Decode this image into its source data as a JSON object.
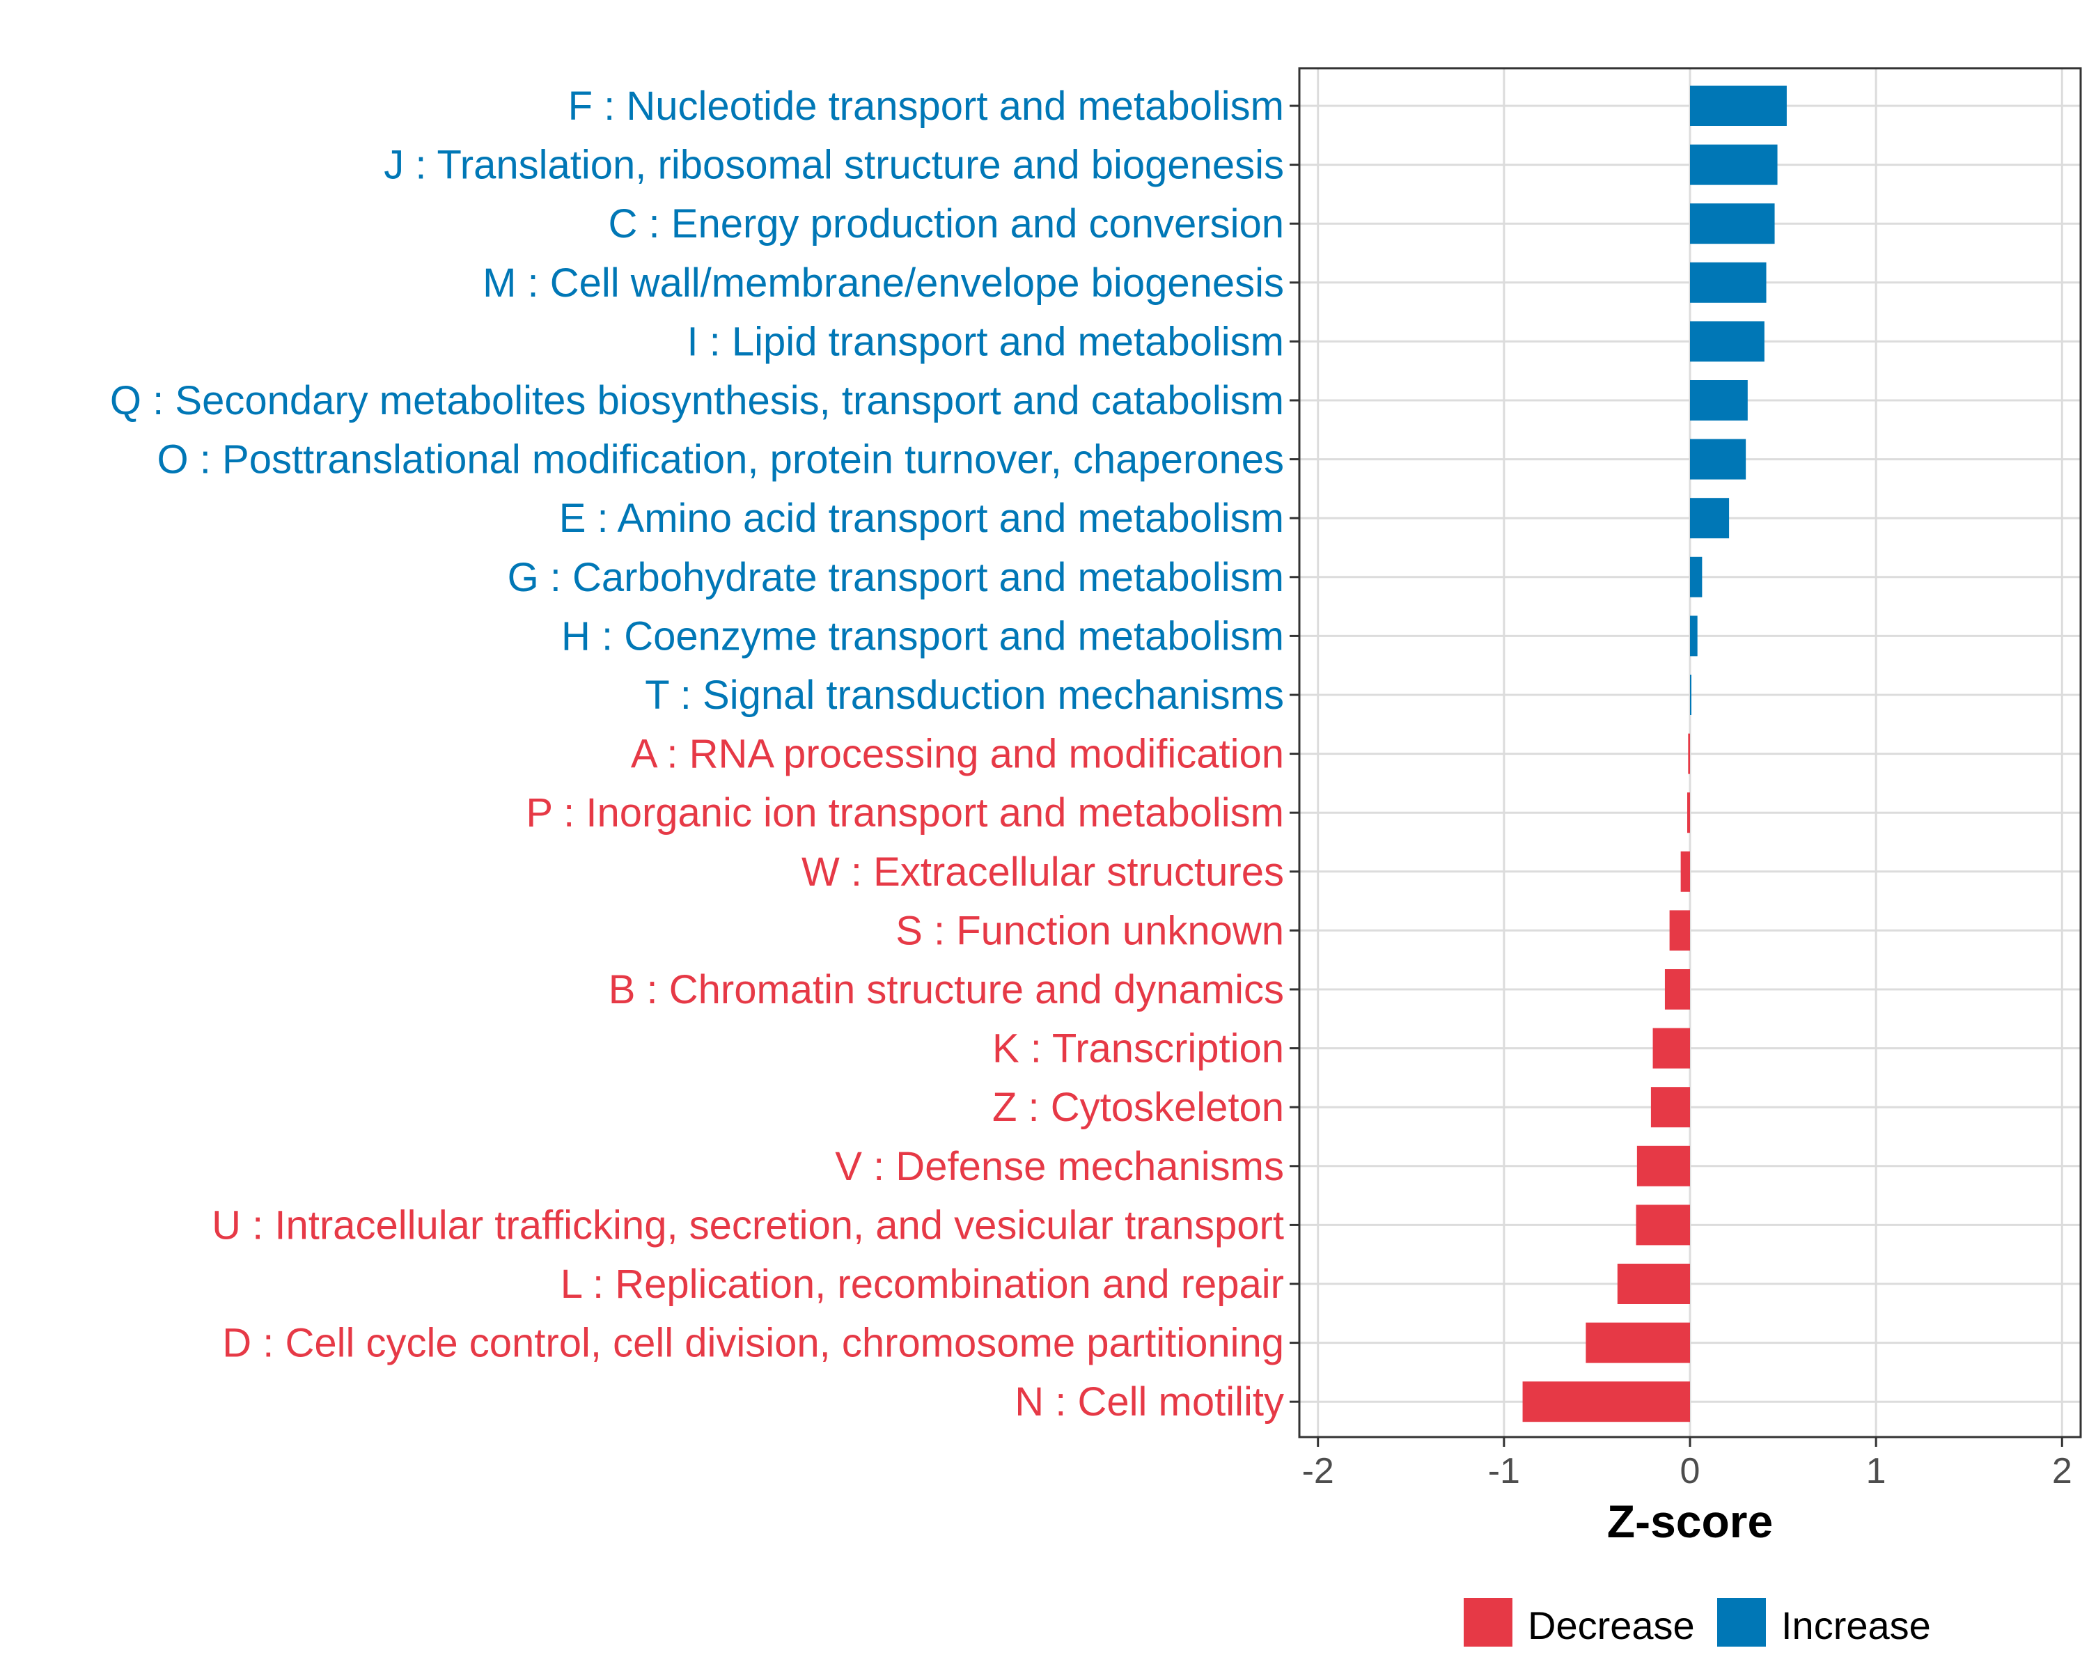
{
  "chart_data": {
    "type": "bar",
    "orientation": "horizontal",
    "xlabel": "Z-score",
    "xlim": [
      -2.1,
      2.1
    ],
    "xticks": [
      -2,
      -1,
      0,
      1,
      2
    ],
    "colors": {
      "Decrease": "#e63946",
      "Increase": "#0077b6"
    },
    "legend": {
      "position": "bottom",
      "entries": [
        "Decrease",
        "Increase"
      ]
    },
    "categories": [
      {
        "label": "F : Nucleotide transport and metabolism",
        "value": 0.52,
        "group": "Increase"
      },
      {
        "label": "J : Translation, ribosomal structure and biogenesis",
        "value": 0.47,
        "group": "Increase"
      },
      {
        "label": "C : Energy production and conversion",
        "value": 0.455,
        "group": "Increase"
      },
      {
        "label": "M : Cell wall/membrane/envelope biogenesis",
        "value": 0.41,
        "group": "Increase"
      },
      {
        "label": "I : Lipid transport and metabolism",
        "value": 0.4,
        "group": "Increase"
      },
      {
        "label": "Q : Secondary metabolites biosynthesis, transport and catabolism",
        "value": 0.31,
        "group": "Increase"
      },
      {
        "label": "O : Posttranslational modification, protein turnover, chaperones",
        "value": 0.3,
        "group": "Increase"
      },
      {
        "label": "E : Amino acid transport and metabolism",
        "value": 0.21,
        "group": "Increase"
      },
      {
        "label": "G : Carbohydrate transport and metabolism",
        "value": 0.065,
        "group": "Increase"
      },
      {
        "label": "H : Coenzyme transport and metabolism",
        "value": 0.04,
        "group": "Increase"
      },
      {
        "label": "T : Signal transduction mechanisms",
        "value": 0.005,
        "group": "Increase"
      },
      {
        "label": "A : RNA processing and modification",
        "value": -0.01,
        "group": "Decrease"
      },
      {
        "label": "P : Inorganic ion transport and metabolism",
        "value": -0.015,
        "group": "Decrease"
      },
      {
        "label": "W : Extracellular structures",
        "value": -0.05,
        "group": "Decrease"
      },
      {
        "label": "S : Function unknown",
        "value": -0.11,
        "group": "Decrease"
      },
      {
        "label": "B : Chromatin structure and dynamics",
        "value": -0.135,
        "group": "Decrease"
      },
      {
        "label": "K : Transcription",
        "value": -0.2,
        "group": "Decrease"
      },
      {
        "label": "Z : Cytoskeleton",
        "value": -0.21,
        "group": "Decrease"
      },
      {
        "label": "V : Defense mechanisms",
        "value": -0.285,
        "group": "Decrease"
      },
      {
        "label": "U : Intracellular trafficking, secretion, and vesicular transport",
        "value": -0.29,
        "group": "Decrease"
      },
      {
        "label": "L : Replication, recombination and repair",
        "value": -0.39,
        "group": "Decrease"
      },
      {
        "label": "D : Cell cycle control, cell division, chromosome partitioning",
        "value": -0.56,
        "group": "Decrease"
      },
      {
        "label": "N : Cell motility",
        "value": -0.9,
        "group": "Decrease"
      }
    ]
  }
}
